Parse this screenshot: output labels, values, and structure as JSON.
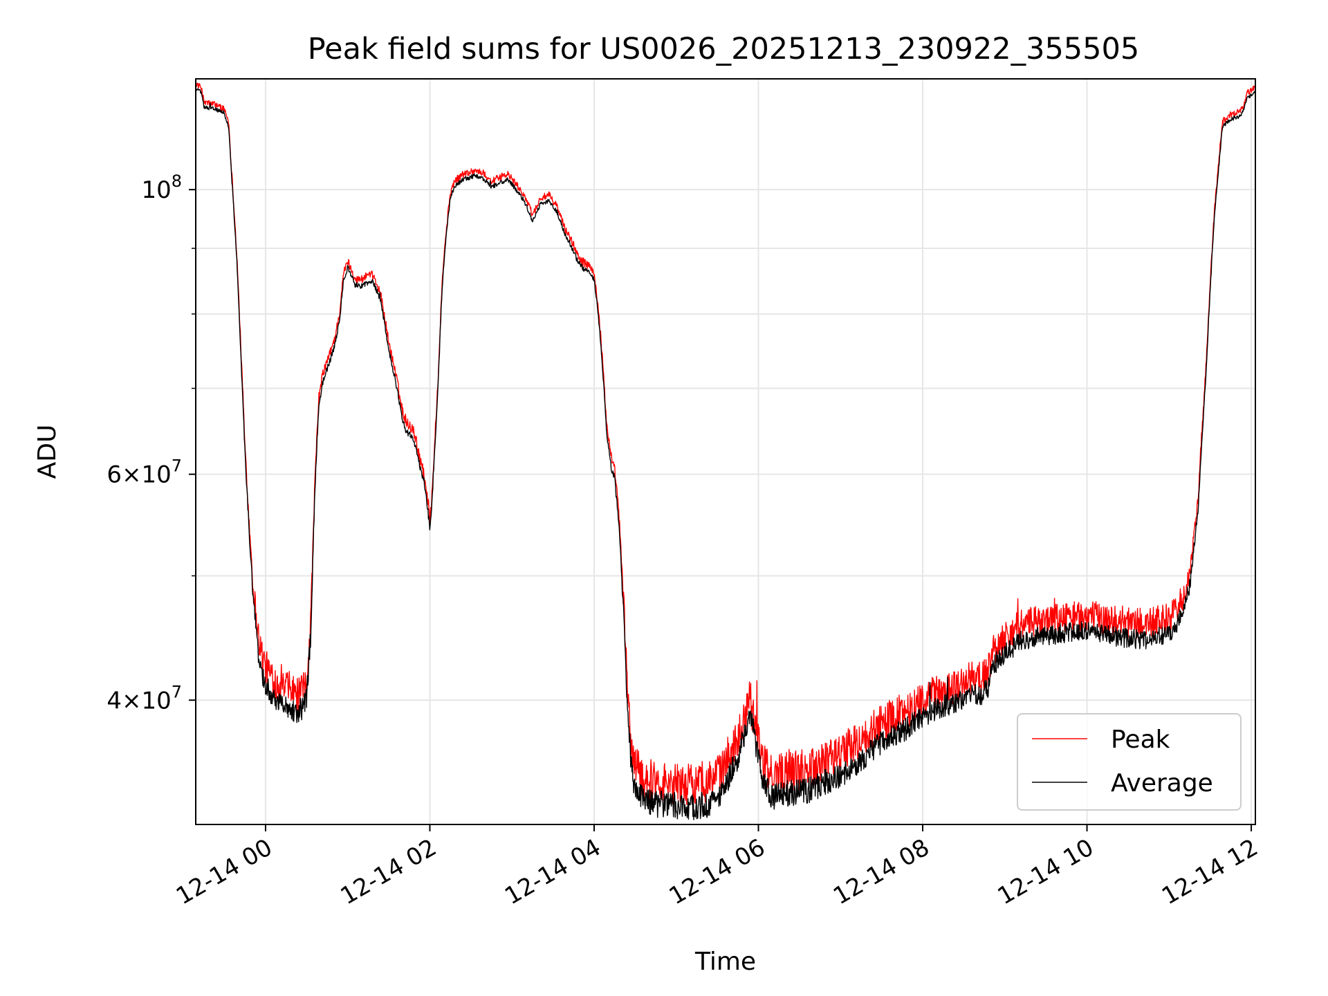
{
  "chart_data": {
    "type": "line",
    "title": "Peak field sums for US0026_20251213_230922_355505",
    "xlabel": "Time",
    "ylabel": "ADU",
    "yscale": "log",
    "xlim": [
      -0.85,
      12.05
    ],
    "ylim": [
      32000000,
      122000000
    ],
    "x_ticks": [
      {
        "value": 0,
        "label": "12-14 00"
      },
      {
        "value": 2,
        "label": "12-14 02"
      },
      {
        "value": 4,
        "label": "12-14 04"
      },
      {
        "value": 6,
        "label": "12-14 06"
      },
      {
        "value": 8,
        "label": "12-14 08"
      },
      {
        "value": 10,
        "label": "12-14 10"
      },
      {
        "value": 12,
        "label": "12-14 12"
      }
    ],
    "y_major_ticks": [
      {
        "value": 100000000,
        "base": "10",
        "exp": "8",
        "mult": ""
      },
      {
        "value": 60000000,
        "base": "10",
        "exp": "7",
        "mult": "6"
      },
      {
        "value": 40000000,
        "base": "10",
        "exp": "7",
        "mult": "4"
      }
    ],
    "y_minor_ticks": [
      50000000,
      70000000,
      80000000,
      90000000
    ],
    "grid": true,
    "legend": {
      "position": "lower right",
      "entries": [
        "Peak",
        "Average"
      ]
    },
    "colors": {
      "peak": "#ff0000",
      "average": "#000000",
      "grid": "#e6e6e6"
    },
    "series": [
      {
        "name": "Average",
        "color": "#000000",
        "noise": 800000,
        "points": [
          [
            -0.85,
            120000000
          ],
          [
            -0.78,
            119000000
          ],
          [
            -0.75,
            116000000
          ],
          [
            -0.6,
            115500000
          ],
          [
            -0.5,
            114500000
          ],
          [
            -0.45,
            112000000
          ],
          [
            -0.42,
            104000000
          ],
          [
            -0.35,
            88000000
          ],
          [
            -0.3,
            74000000
          ],
          [
            -0.25,
            62000000
          ],
          [
            -0.2,
            54000000
          ],
          [
            -0.15,
            48000000
          ],
          [
            -0.1,
            44000000
          ],
          [
            -0.05,
            42000000
          ],
          [
            0.0,
            41200000
          ],
          [
            0.1,
            40200000
          ],
          [
            0.2,
            39700000
          ],
          [
            0.3,
            39500000
          ],
          [
            0.4,
            39000000
          ],
          [
            0.45,
            39400000
          ],
          [
            0.5,
            40200000
          ],
          [
            0.55,
            45000000
          ],
          [
            0.6,
            58000000
          ],
          [
            0.65,
            68000000
          ],
          [
            0.7,
            71000000
          ],
          [
            0.8,
            74000000
          ],
          [
            0.85,
            76000000
          ],
          [
            0.9,
            79000000
          ],
          [
            0.95,
            85000000
          ],
          [
            1.0,
            87000000
          ],
          [
            1.05,
            85500000
          ],
          [
            1.1,
            84000000
          ],
          [
            1.2,
            84300000
          ],
          [
            1.3,
            84800000
          ],
          [
            1.35,
            83500000
          ],
          [
            1.4,
            82000000
          ],
          [
            1.5,
            75000000
          ],
          [
            1.6,
            70000000
          ],
          [
            1.65,
            67000000
          ],
          [
            1.7,
            65000000
          ],
          [
            1.8,
            64000000
          ],
          [
            1.9,
            60000000
          ],
          [
            1.95,
            58000000
          ],
          [
            2.0,
            54500000
          ],
          [
            2.02,
            56000000
          ],
          [
            2.1,
            70000000
          ],
          [
            2.15,
            84000000
          ],
          [
            2.2,
            92000000
          ],
          [
            2.25,
            98500000
          ],
          [
            2.3,
            100500000
          ],
          [
            2.4,
            101800000
          ],
          [
            2.55,
            102500000
          ],
          [
            2.65,
            102000000
          ],
          [
            2.75,
            100500000
          ],
          [
            2.85,
            101200000
          ],
          [
            2.95,
            101800000
          ],
          [
            3.05,
            100000000
          ],
          [
            3.15,
            98000000
          ],
          [
            3.25,
            94500000
          ],
          [
            3.3,
            96000000
          ],
          [
            3.35,
            97500000
          ],
          [
            3.45,
            98000000
          ],
          [
            3.55,
            96000000
          ],
          [
            3.65,
            92000000
          ],
          [
            3.7,
            91000000
          ],
          [
            3.8,
            88000000
          ],
          [
            3.85,
            87000000
          ],
          [
            3.95,
            86000000
          ],
          [
            4.0,
            85000000
          ],
          [
            4.05,
            80000000
          ],
          [
            4.1,
            73000000
          ],
          [
            4.15,
            65000000
          ],
          [
            4.2,
            61000000
          ],
          [
            4.25,
            59500000
          ],
          [
            4.3,
            55000000
          ],
          [
            4.35,
            48000000
          ],
          [
            4.4,
            40000000
          ],
          [
            4.45,
            35500000
          ],
          [
            4.5,
            34000000
          ],
          [
            4.6,
            33400000
          ],
          [
            4.8,
            33200000
          ],
          [
            5.0,
            33100000
          ],
          [
            5.2,
            33000000
          ],
          [
            5.4,
            33200000
          ],
          [
            5.55,
            33800000
          ],
          [
            5.65,
            35000000
          ],
          [
            5.75,
            36000000
          ],
          [
            5.85,
            38000000
          ],
          [
            5.9,
            39200000
          ],
          [
            5.95,
            37500000
          ],
          [
            6.05,
            34500000
          ],
          [
            6.15,
            33600000
          ],
          [
            6.3,
            33800000
          ],
          [
            6.45,
            33900000
          ],
          [
            6.6,
            34000000
          ],
          [
            6.8,
            34500000
          ],
          [
            7.0,
            35000000
          ],
          [
            7.2,
            35700000
          ],
          [
            7.4,
            36700000
          ],
          [
            7.6,
            37500000
          ],
          [
            7.8,
            38000000
          ],
          [
            8.0,
            38800000
          ],
          [
            8.2,
            39500000
          ],
          [
            8.4,
            39800000
          ],
          [
            8.5,
            40000000
          ],
          [
            8.6,
            40500000
          ],
          [
            8.7,
            40200000
          ],
          [
            8.8,
            41000000
          ],
          [
            8.85,
            42500000
          ],
          [
            9.0,
            43500000
          ],
          [
            9.2,
            44500000
          ],
          [
            9.4,
            44800000
          ],
          [
            9.6,
            45000000
          ],
          [
            9.8,
            45200000
          ],
          [
            10.0,
            45300000
          ],
          [
            10.2,
            45000000
          ],
          [
            10.4,
            44800000
          ],
          [
            10.6,
            44600000
          ],
          [
            10.8,
            44700000
          ],
          [
            11.0,
            45000000
          ],
          [
            11.15,
            46500000
          ],
          [
            11.25,
            49000000
          ],
          [
            11.35,
            56000000
          ],
          [
            11.45,
            72000000
          ],
          [
            11.55,
            95000000
          ],
          [
            11.65,
            112000000
          ],
          [
            11.75,
            113500000
          ],
          [
            11.85,
            114000000
          ],
          [
            11.9,
            115000000
          ],
          [
            11.95,
            118000000
          ],
          [
            12.0,
            118500000
          ],
          [
            12.05,
            119000000
          ]
        ]
      },
      {
        "name": "Peak",
        "color": "#ff0000",
        "noise": 1300000,
        "points": [
          [
            -0.85,
            121000000
          ],
          [
            -0.78,
            120000000
          ],
          [
            -0.75,
            117000000
          ],
          [
            -0.6,
            116500000
          ],
          [
            -0.5,
            115500000
          ],
          [
            -0.45,
            113000000
          ],
          [
            -0.42,
            105000000
          ],
          [
            -0.35,
            89000000
          ],
          [
            -0.3,
            75000000
          ],
          [
            -0.25,
            63000000
          ],
          [
            -0.2,
            55000000
          ],
          [
            -0.15,
            49000000
          ],
          [
            -0.1,
            45500000
          ],
          [
            -0.05,
            43500000
          ],
          [
            0.0,
            42500000
          ],
          [
            0.1,
            41500000
          ],
          [
            0.2,
            41000000
          ],
          [
            0.3,
            40800000
          ],
          [
            0.4,
            40300000
          ],
          [
            0.45,
            40600000
          ],
          [
            0.5,
            41300000
          ],
          [
            0.55,
            46000000
          ],
          [
            0.6,
            59000000
          ],
          [
            0.65,
            69000000
          ],
          [
            0.7,
            72000000
          ],
          [
            0.8,
            75000000
          ],
          [
            0.85,
            77000000
          ],
          [
            0.9,
            80000000
          ],
          [
            0.95,
            86000000
          ],
          [
            1.0,
            88000000
          ],
          [
            1.05,
            86500000
          ],
          [
            1.1,
            85000000
          ],
          [
            1.2,
            85300000
          ],
          [
            1.3,
            85800000
          ],
          [
            1.35,
            84500000
          ],
          [
            1.4,
            83000000
          ],
          [
            1.5,
            76000000
          ],
          [
            1.6,
            71000000
          ],
          [
            1.65,
            68000000
          ],
          [
            1.7,
            66000000
          ],
          [
            1.8,
            65000000
          ],
          [
            1.9,
            61000000
          ],
          [
            1.95,
            59000000
          ],
          [
            2.0,
            55500000
          ],
          [
            2.02,
            57000000
          ],
          [
            2.1,
            71000000
          ],
          [
            2.15,
            85000000
          ],
          [
            2.2,
            93000000
          ],
          [
            2.25,
            99500000
          ],
          [
            2.3,
            101500000
          ],
          [
            2.4,
            102800000
          ],
          [
            2.55,
            103500000
          ],
          [
            2.65,
            103000000
          ],
          [
            2.75,
            101500000
          ],
          [
            2.85,
            102200000
          ],
          [
            2.95,
            102800000
          ],
          [
            3.05,
            101000000
          ],
          [
            3.15,
            99000000
          ],
          [
            3.25,
            95500000
          ],
          [
            3.3,
            97000000
          ],
          [
            3.35,
            98500000
          ],
          [
            3.45,
            99000000
          ],
          [
            3.55,
            97000000
          ],
          [
            3.65,
            93000000
          ],
          [
            3.7,
            92000000
          ],
          [
            3.8,
            89000000
          ],
          [
            3.85,
            88000000
          ],
          [
            3.95,
            87000000
          ],
          [
            4.0,
            86000000
          ],
          [
            4.05,
            81000000
          ],
          [
            4.1,
            74000000
          ],
          [
            4.15,
            66000000
          ],
          [
            4.2,
            62000000
          ],
          [
            4.25,
            60500000
          ],
          [
            4.3,
            56000000
          ],
          [
            4.35,
            49000000
          ],
          [
            4.4,
            41500000
          ],
          [
            4.45,
            37000000
          ],
          [
            4.5,
            35500000
          ],
          [
            4.6,
            34800000
          ],
          [
            4.8,
            34600000
          ],
          [
            5.0,
            34500000
          ],
          [
            5.2,
            34400000
          ],
          [
            5.4,
            34600000
          ],
          [
            5.55,
            35200000
          ],
          [
            5.65,
            36400000
          ],
          [
            5.75,
            37400000
          ],
          [
            5.85,
            39300000
          ],
          [
            5.9,
            40500000
          ],
          [
            5.95,
            38800000
          ],
          [
            6.05,
            35800000
          ],
          [
            6.15,
            35000000
          ],
          [
            6.3,
            35200000
          ],
          [
            6.45,
            35300000
          ],
          [
            6.6,
            35400000
          ],
          [
            6.8,
            35900000
          ],
          [
            7.0,
            36400000
          ],
          [
            7.2,
            37100000
          ],
          [
            7.4,
            38000000
          ],
          [
            7.6,
            38800000
          ],
          [
            7.8,
            39300000
          ],
          [
            8.0,
            40000000
          ],
          [
            8.2,
            40700000
          ],
          [
            8.4,
            41000000
          ],
          [
            8.5,
            41200000
          ],
          [
            8.6,
            41700000
          ],
          [
            8.7,
            41400000
          ],
          [
            8.8,
            42200000
          ],
          [
            8.85,
            43800000
          ],
          [
            9.0,
            44800000
          ],
          [
            9.2,
            45800000
          ],
          [
            9.4,
            46100000
          ],
          [
            9.6,
            46300000
          ],
          [
            9.8,
            46500000
          ],
          [
            10.0,
            46600000
          ],
          [
            10.2,
            46300000
          ],
          [
            10.4,
            46100000
          ],
          [
            10.6,
            45900000
          ],
          [
            10.8,
            46000000
          ],
          [
            11.0,
            46300000
          ],
          [
            11.15,
            47700000
          ],
          [
            11.25,
            50000000
          ],
          [
            11.35,
            57000000
          ],
          [
            11.45,
            73000000
          ],
          [
            11.55,
            96000000
          ],
          [
            11.65,
            113000000
          ],
          [
            11.75,
            114500000
          ],
          [
            11.85,
            115000000
          ],
          [
            11.9,
            116000000
          ],
          [
            11.95,
            119000000
          ],
          [
            12.0,
            119500000
          ],
          [
            12.05,
            120000000
          ]
        ]
      }
    ]
  }
}
